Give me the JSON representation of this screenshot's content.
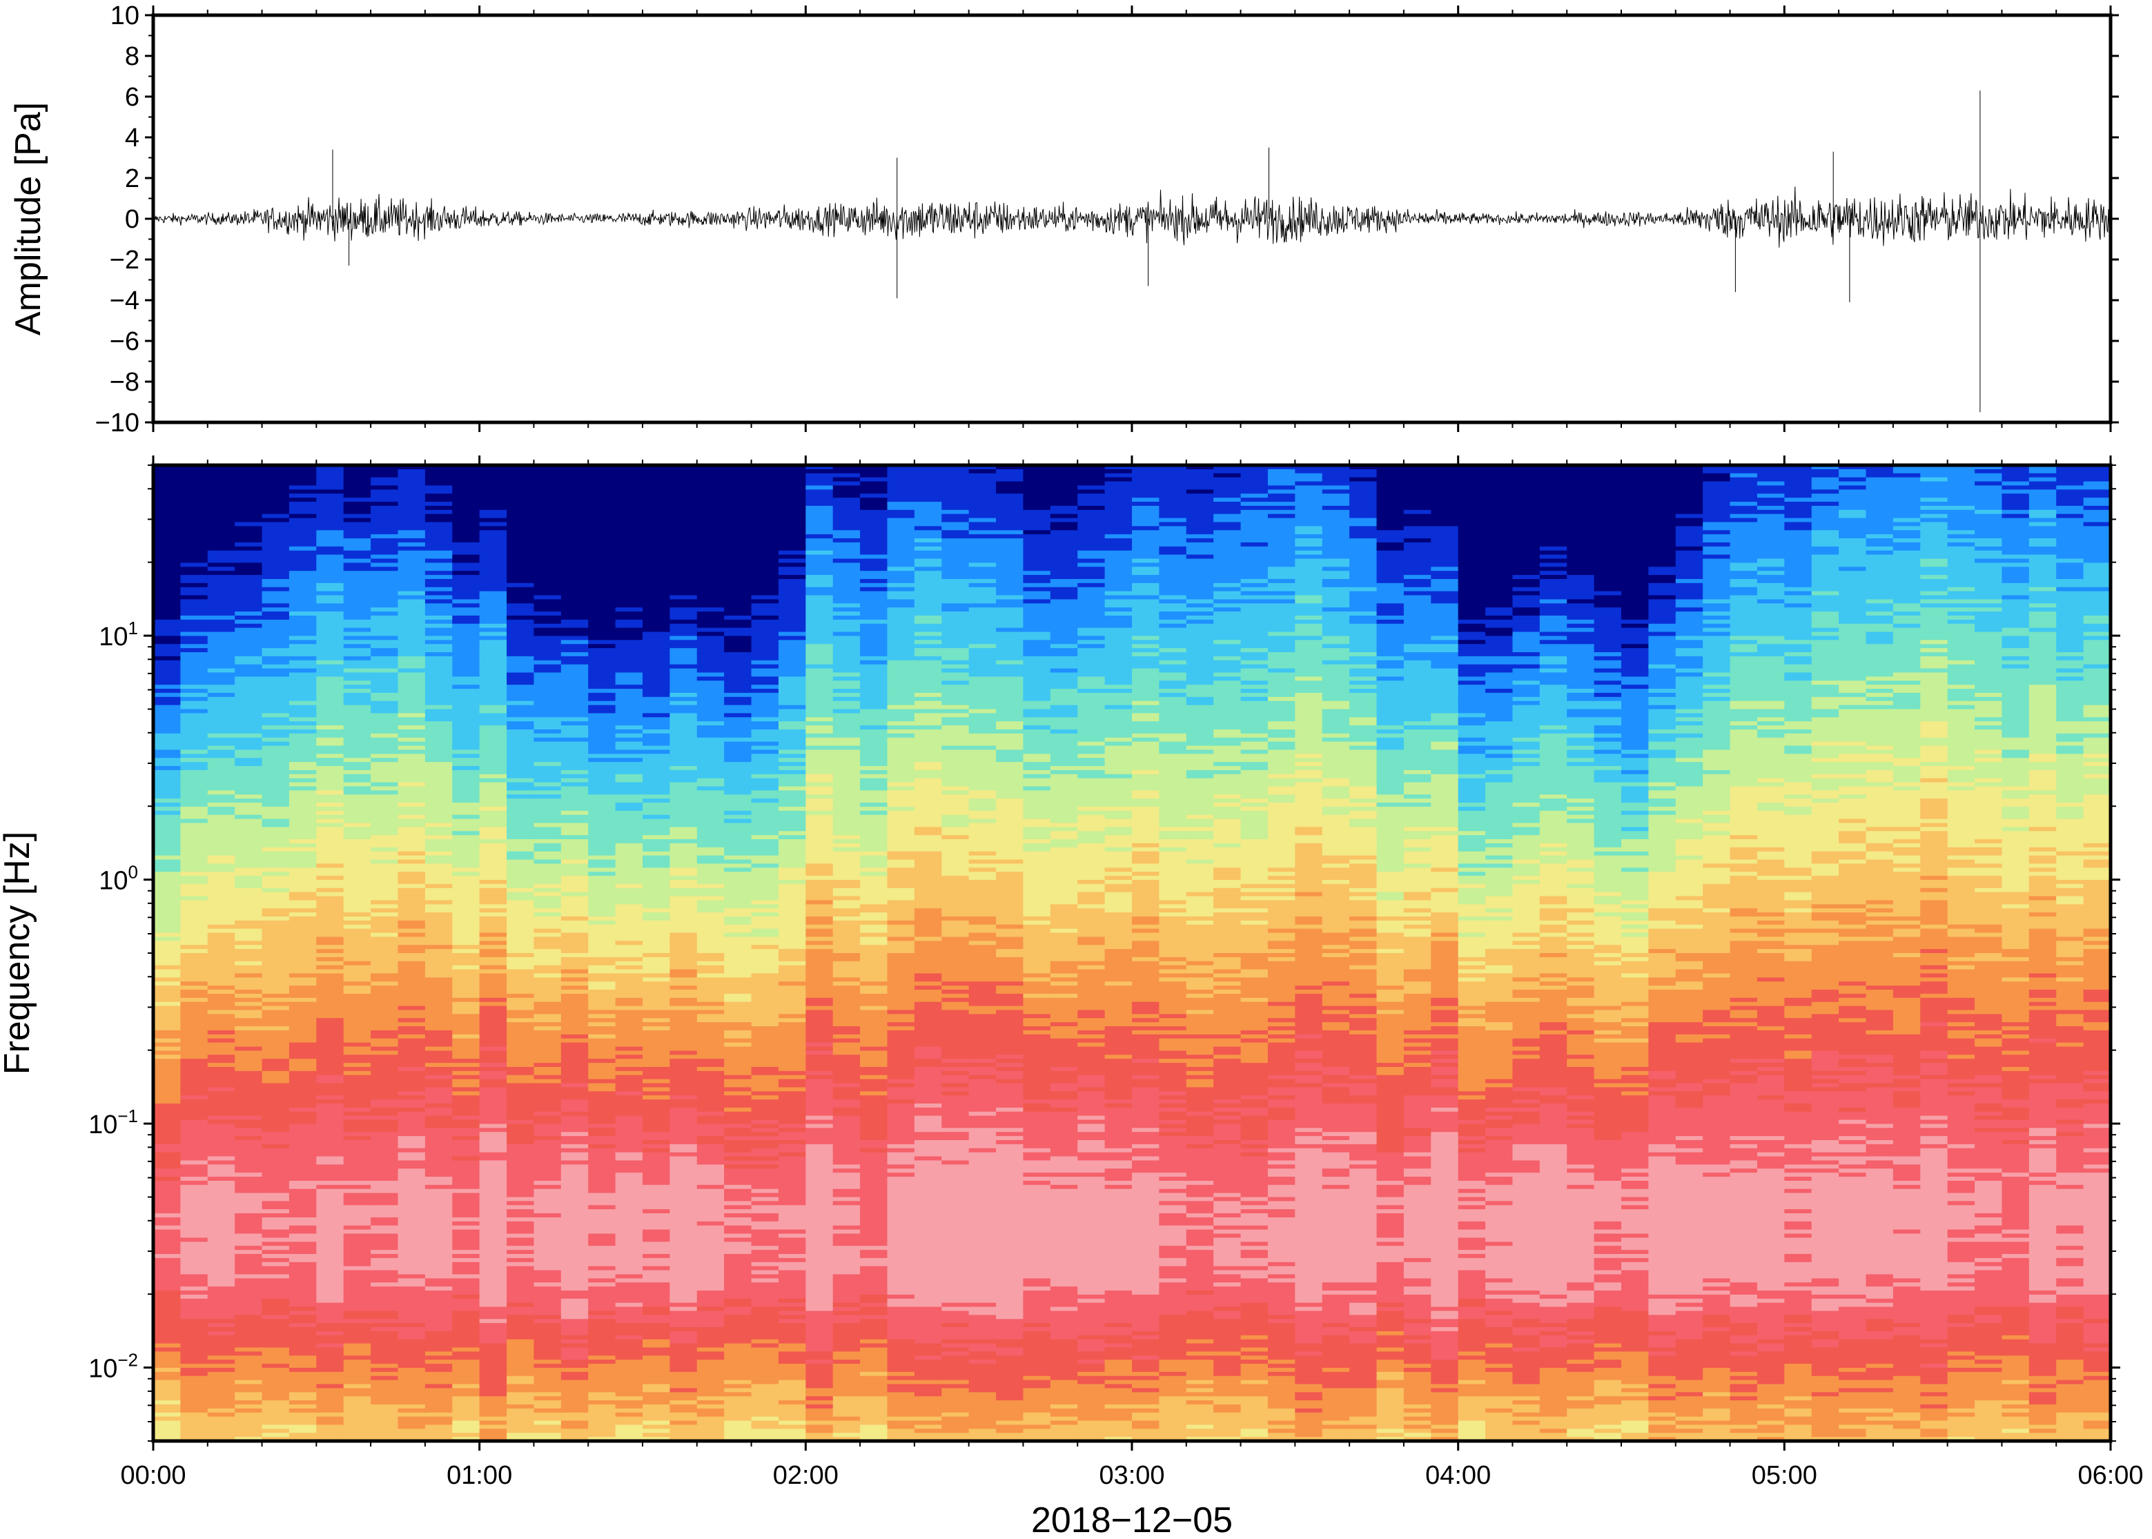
{
  "chart_data": [
    {
      "type": "line",
      "ylabel": "Amplitude [Pa]",
      "ylim": [
        -10,
        10
      ],
      "yticks": [
        10,
        8,
        6,
        4,
        2,
        0,
        -2,
        -4,
        -6,
        -8,
        -10
      ],
      "ytick_labels": [
        "10",
        "8",
        "6",
        "4",
        "2",
        "0",
        "−2",
        "−4",
        "−6",
        "−8",
        "−10"
      ],
      "xlim_hours": [
        0,
        6
      ],
      "series_color": "#000000",
      "envelope": {
        "hours": [
          0.0,
          0.25,
          0.5,
          0.6,
          0.75,
          0.9,
          1.1,
          1.3,
          1.5,
          1.75,
          1.9,
          2.1,
          2.3,
          2.5,
          2.75,
          2.95,
          3.1,
          3.3,
          3.45,
          3.65,
          3.85,
          4.1,
          4.3,
          4.5,
          4.65,
          4.8,
          5.0,
          5.2,
          5.4,
          5.6,
          5.8,
          6.0
        ],
        "amplitude": [
          0.3,
          0.4,
          1.2,
          1.3,
          1.3,
          0.9,
          0.45,
          0.3,
          0.45,
          0.55,
          0.8,
          0.95,
          1.4,
          1.3,
          0.8,
          1.0,
          1.3,
          1.4,
          1.5,
          1.1,
          0.6,
          0.3,
          0.4,
          0.5,
          0.4,
          1.2,
          1.5,
          1.6,
          1.6,
          1.5,
          1.4,
          1.3
        ]
      },
      "spikes": [
        {
          "hour": 0.55,
          "value": 3.4
        },
        {
          "hour": 0.6,
          "value": -2.3
        },
        {
          "hour": 2.28,
          "value": 3.0
        },
        {
          "hour": 2.28,
          "value": -3.9
        },
        {
          "hour": 3.42,
          "value": 3.5
        },
        {
          "hour": 3.05,
          "value": -3.3
        },
        {
          "hour": 4.85,
          "value": -3.6
        },
        {
          "hour": 5.15,
          "value": 3.3
        },
        {
          "hour": 5.2,
          "value": -4.1
        },
        {
          "hour": 5.6,
          "value": 6.3
        },
        {
          "hour": 5.6,
          "value": -9.5
        }
      ]
    },
    {
      "type": "heatmap",
      "ylabel": "Frequency [Hz]",
      "xlabel": "2018−12−05",
      "yscale": "log",
      "ylim_hz": [
        0.005,
        50
      ],
      "yticks_hz": [
        10,
        1,
        0.1,
        0.01
      ],
      "ytick_labels": [
        {
          "base": "10",
          "exp": "1"
        },
        {
          "base": "10",
          "exp": "0"
        },
        {
          "base": "10",
          "exp": "−1"
        },
        {
          "base": "10",
          "exp": "−2"
        }
      ],
      "x_ticks": [
        "00:00",
        "01:00",
        "02:00",
        "03:00",
        "04:00",
        "05:00",
        "06:00"
      ],
      "xlim_hours": [
        0,
        6
      ],
      "colormap": [
        "#00007a",
        "#0a2fd6",
        "#1e90ff",
        "#3fc7f2",
        "#74e3c6",
        "#c8f096",
        "#f3ea88",
        "#f9c263",
        "#f79448",
        "#f1584f",
        "#f5606a",
        "#f7a0a8"
      ],
      "activity": {
        "hours": [
          0.0,
          0.15,
          0.3,
          0.45,
          0.6,
          0.8,
          1.0,
          1.15,
          1.3,
          1.45,
          1.6,
          1.75,
          1.9,
          2.05,
          2.25,
          2.45,
          2.65,
          2.85,
          3.0,
          3.2,
          3.4,
          3.6,
          3.75,
          3.9,
          4.05,
          4.15,
          4.3,
          4.45,
          4.55,
          4.65,
          4.8,
          5.0,
          5.2,
          5.4,
          5.6,
          5.8,
          6.0
        ],
        "level": [
          0.35,
          0.45,
          0.6,
          0.7,
          0.75,
          0.7,
          0.55,
          0.4,
          0.2,
          0.25,
          0.3,
          0.3,
          0.45,
          0.7,
          0.75,
          0.7,
          0.6,
          0.55,
          0.75,
          0.8,
          0.85,
          0.8,
          0.65,
          0.55,
          0.35,
          0.3,
          0.45,
          0.4,
          0.25,
          0.35,
          0.75,
          0.8,
          0.85,
          0.9,
          0.95,
          0.85,
          0.8
        ]
      }
    }
  ]
}
